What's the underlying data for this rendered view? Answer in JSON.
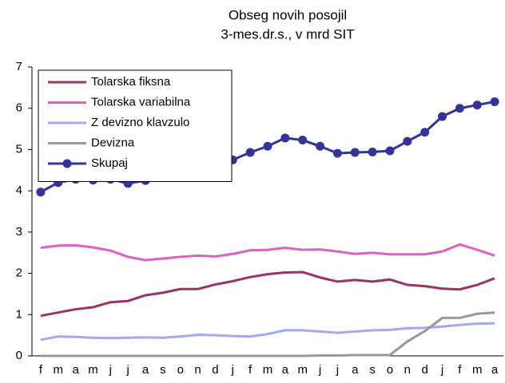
{
  "chart_data": {
    "type": "line",
    "title": "Obseg novih posojil",
    "subtitle": "3-mes.dr.s., v mrd SIT",
    "categories": [
      "f",
      "m",
      "a",
      "m",
      "j",
      "j",
      "a",
      "s",
      "o",
      "n",
      "d",
      "j",
      "f",
      "m",
      "a",
      "m",
      "j",
      "j",
      "a",
      "s",
      "o",
      "n",
      "d",
      "j",
      "f",
      "m",
      "a"
    ],
    "series": [
      {
        "name": "Tolarska fiksna",
        "color": "#993366",
        "marker": false,
        "values": [
          0.97,
          1.05,
          1.13,
          1.18,
          1.3,
          1.33,
          1.47,
          1.53,
          1.62,
          1.62,
          1.73,
          1.81,
          1.91,
          1.98,
          2.02,
          2.03,
          1.9,
          1.8,
          1.84,
          1.8,
          1.85,
          1.72,
          1.69,
          1.63,
          1.61,
          1.72,
          1.88
        ]
      },
      {
        "name": "Tolarska variabilna",
        "color": "#e060c0",
        "marker": false,
        "values": [
          2.62,
          2.67,
          2.68,
          2.63,
          2.55,
          2.4,
          2.32,
          2.36,
          2.4,
          2.43,
          2.41,
          2.47,
          2.56,
          2.57,
          2.62,
          2.57,
          2.58,
          2.53,
          2.47,
          2.5,
          2.46,
          2.46,
          2.46,
          2.53,
          2.7,
          2.57,
          2.43
        ]
      },
      {
        "name": "Z devizno klavzulo",
        "color": "#a6a6f2",
        "marker": false,
        "values": [
          0.39,
          0.47,
          0.46,
          0.44,
          0.43,
          0.44,
          0.45,
          0.44,
          0.47,
          0.51,
          0.5,
          0.48,
          0.47,
          0.53,
          0.62,
          0.62,
          0.59,
          0.56,
          0.59,
          0.62,
          0.63,
          0.67,
          0.68,
          0.71,
          0.75,
          0.78,
          0.79
        ]
      },
      {
        "name": "Devizna",
        "color": "#999999",
        "marker": false,
        "values": [
          0,
          0,
          0,
          0,
          0,
          0,
          0,
          0,
          0,
          0,
          0,
          0,
          0,
          0,
          0,
          0,
          0.01,
          0.01,
          0.02,
          0.02,
          0.02,
          0.35,
          0.6,
          0.92,
          0.92,
          1.02,
          1.05
        ]
      },
      {
        "name": "Skupaj",
        "color": "#333399",
        "marker": true,
        "values": [
          3.97,
          4.2,
          4.28,
          4.26,
          4.28,
          4.18,
          4.25,
          4.33,
          4.5,
          4.56,
          4.65,
          4.75,
          4.93,
          5.08,
          5.28,
          5.23,
          5.08,
          4.91,
          4.93,
          4.94,
          4.97,
          5.2,
          5.42,
          5.8,
          6.0,
          6.08,
          6.16
        ]
      }
    ],
    "ylim": [
      0,
      7
    ],
    "yticks": [
      0,
      1,
      2,
      3,
      4,
      5,
      6,
      7
    ],
    "grid": false,
    "legend_position": "upper left"
  }
}
